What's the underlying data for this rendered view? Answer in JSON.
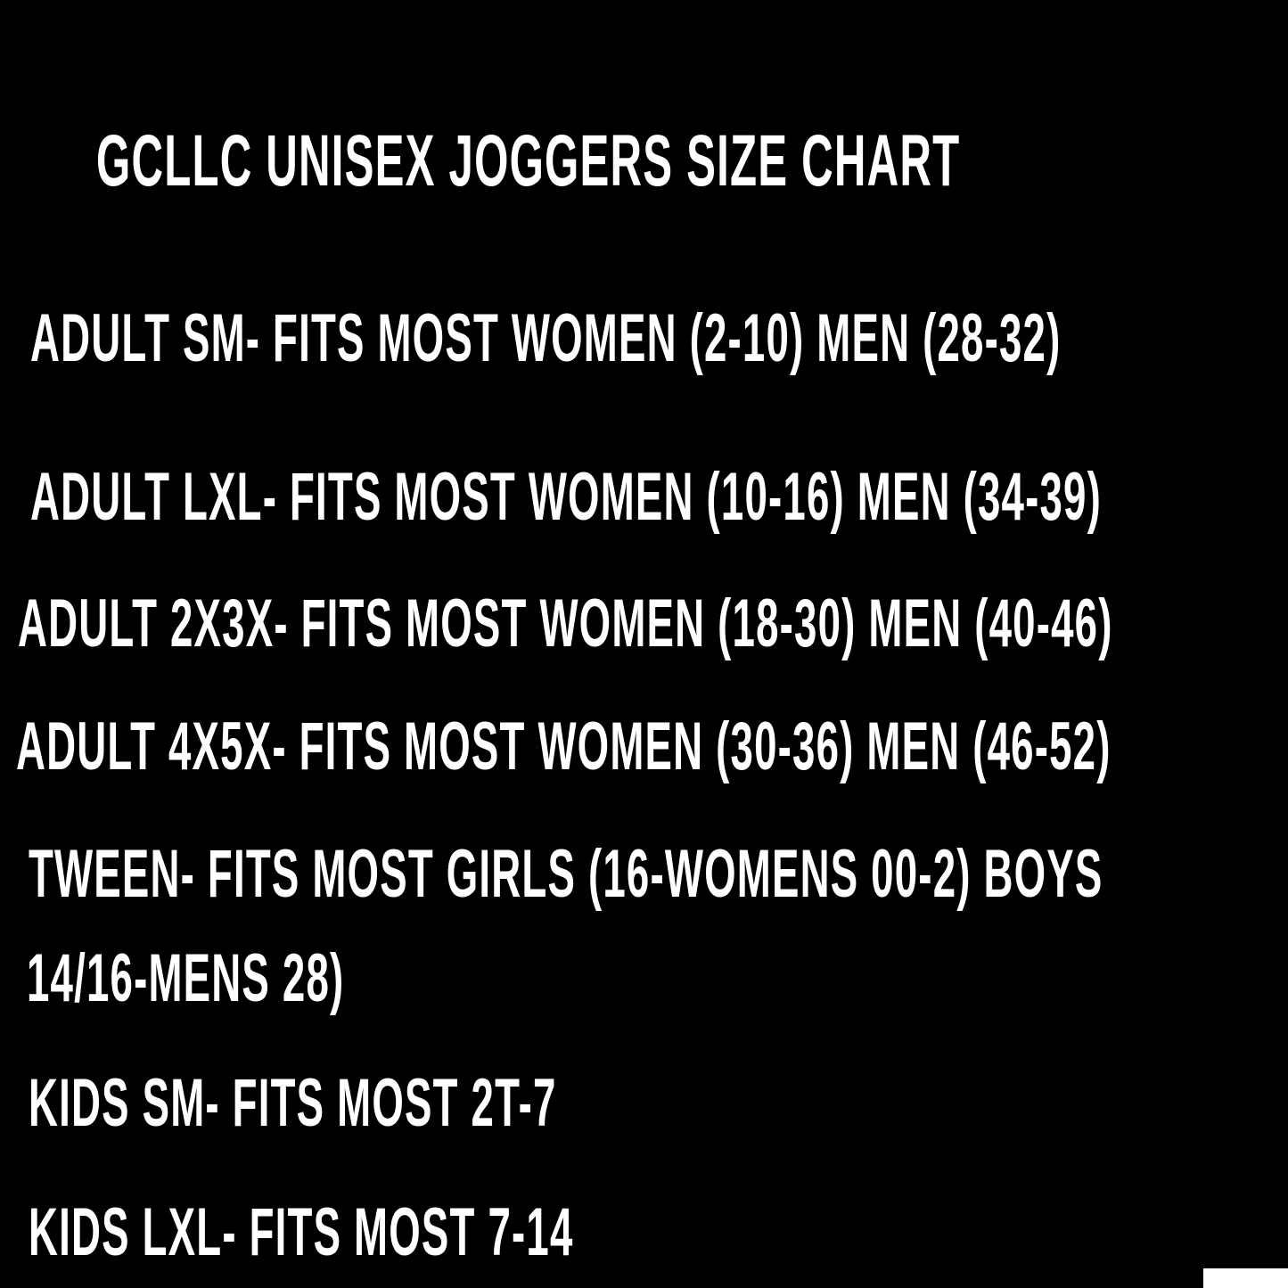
{
  "title": "GCLLC UNISEX JOGGERS SIZE CHART",
  "lines": [
    "ADULT SM- FITS MOST WOMEN (2-10) MEN (28-32)",
    "ADULT LXL- FITS MOST WOMEN (10-16) MEN (34-39)",
    "ADULT 2X3X- FITS MOST WOMEN (18-30) MEN (40-46)",
    "ADULT 4X5X- FITS MOST WOMEN (30-36) MEN (46-52)",
    "TWEEN- FITS MOST GIRLS (16-WOMENS 00-2) BOYS",
    "14/16-MENS 28)",
    "KIDS SM- FITS MOST 2T-7",
    "KIDS LXL- FITS MOST 7-14"
  ],
  "colors": {
    "background": "#000000",
    "text": "#ffffff"
  }
}
